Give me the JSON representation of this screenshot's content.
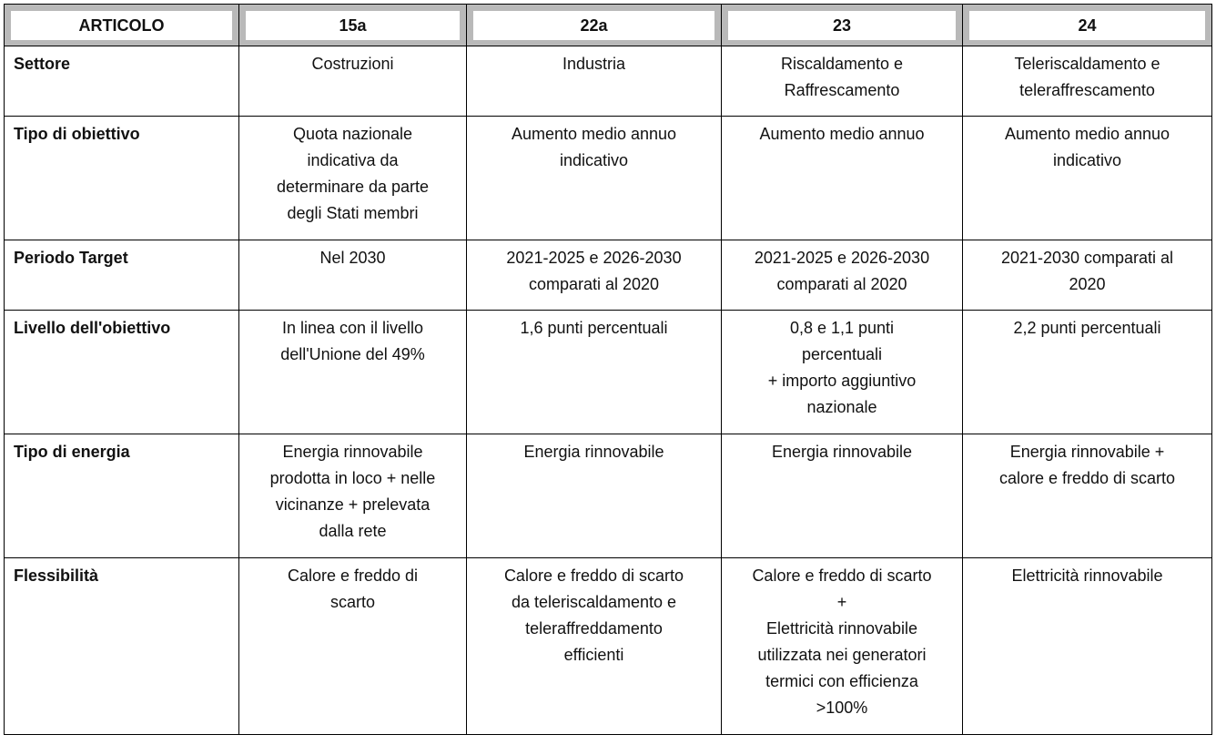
{
  "headers": [
    "ARTICOLO",
    "15a",
    "22a",
    "23",
    "24"
  ],
  "rows": [
    {
      "label": "Settore",
      "cells": [
        "Costruzioni",
        "Industria",
        "Riscaldamento e\nRaffrescamento",
        "Teleriscaldamento e\nteleraffrescamento"
      ]
    },
    {
      "label": "Tipo di obiettivo",
      "cells": [
        "Quota nazionale\nindicativa da\ndeterminare da parte\ndegli Stati membri",
        "Aumento medio annuo\nindicativo",
        "Aumento medio annuo",
        "Aumento medio annuo\nindicativo"
      ]
    },
    {
      "label": "Periodo Target",
      "cells": [
        "Nel 2030",
        "2021-2025 e 2026-2030\ncomparati al 2020",
        "2021-2025 e 2026-2030\ncomparati al 2020",
        "2021-2030 comparati al\n2020"
      ]
    },
    {
      "label": "Livello dell'obiettivo",
      "cells": [
        "In linea con il livello\ndell'Unione del 49%",
        "1,6 punti percentuali",
        "0,8 e 1,1 punti\npercentuali\n+ importo aggiuntivo\nnazionale",
        "2,2 punti percentuali"
      ]
    },
    {
      "label": "Tipo di energia",
      "cells": [
        "Energia rinnovabile\nprodotta in loco + nelle\nvicinanze + prelevata\ndalla rete",
        "Energia rinnovabile",
        "Energia rinnovabile",
        "Energia rinnovabile +\ncalore e freddo di scarto"
      ]
    },
    {
      "label": "Flessibilità",
      "cells": [
        "Calore e freddo di\nscarto",
        "Calore e freddo di scarto\nda teleriscaldamento e\nteleraffreddamento\nefficienti",
        "Calore e freddo di scarto\n+\nElettricità rinnovabile\nutilizzata nei generatori\ntermici con efficienza\n>100%",
        "Elettricità rinnovabile"
      ]
    }
  ]
}
